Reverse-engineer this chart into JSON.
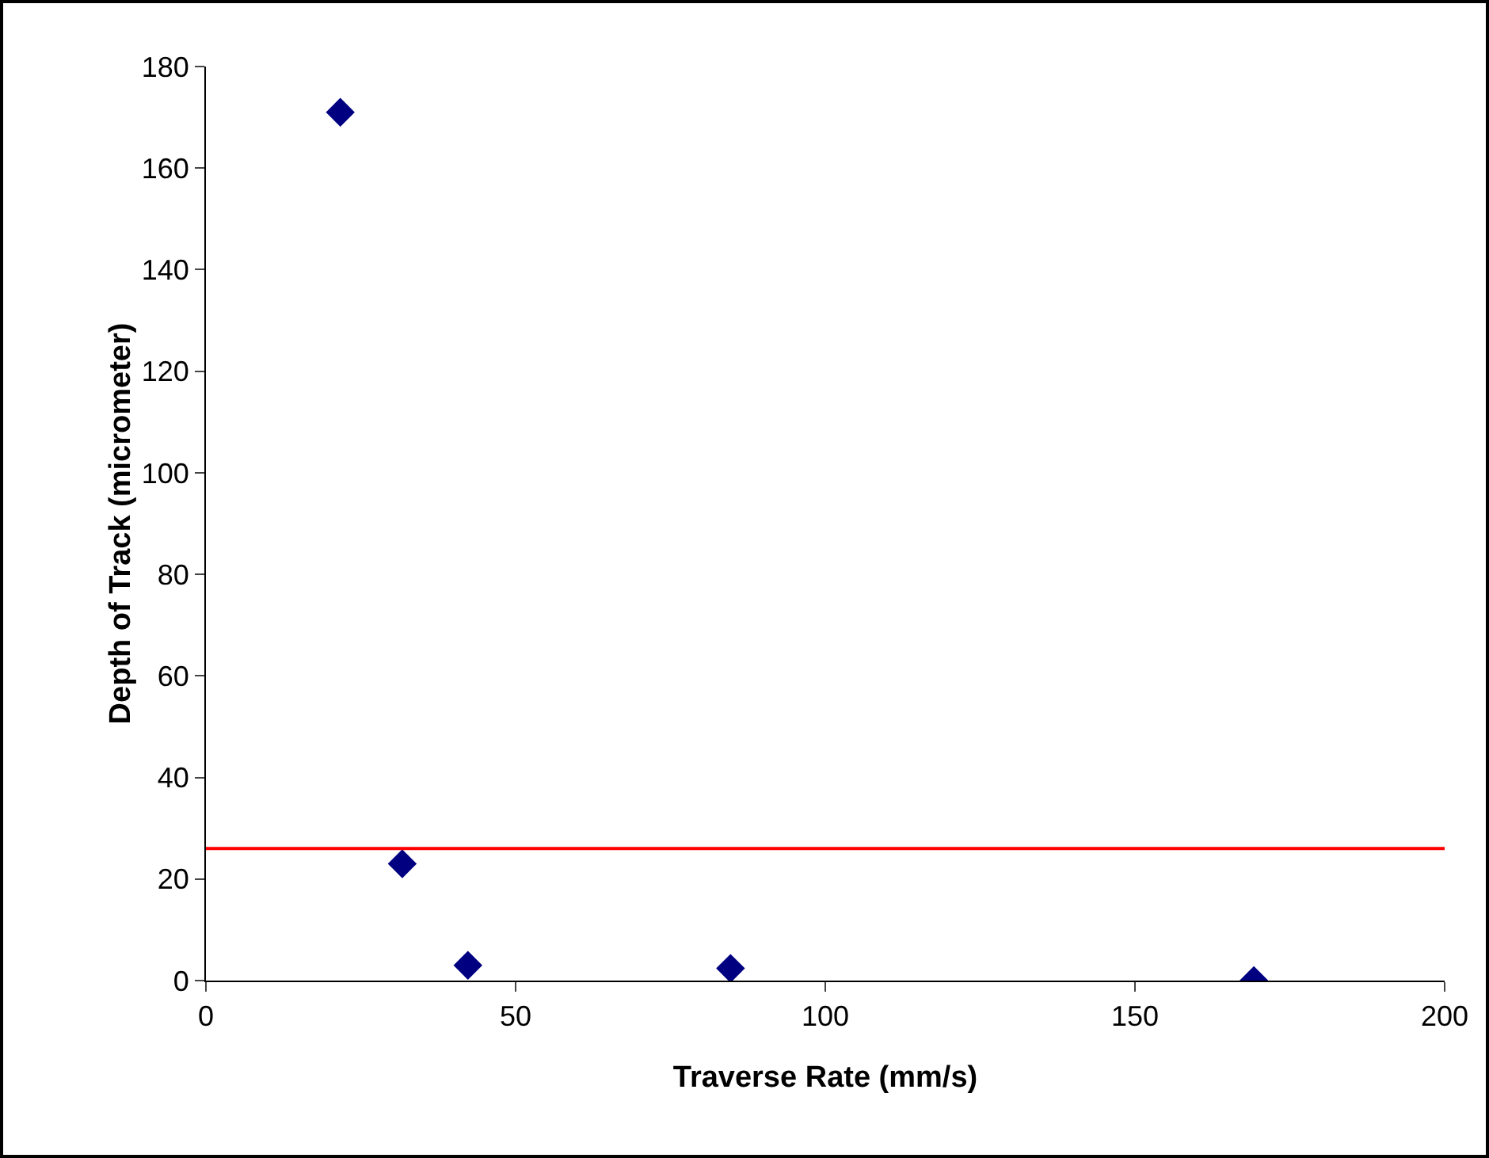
{
  "chart_data": {
    "type": "scatter",
    "xlabel": "Traverse Rate (mm/s)",
    "ylabel": "Depth of Track (micrometer)",
    "x": [
      21.7,
      31.7,
      42.3,
      84.7,
      169.2
    ],
    "values": [
      171,
      23,
      3,
      2.4,
      0
    ],
    "color": "#000080",
    "marker": "diamond",
    "xlim": [
      0,
      200
    ],
    "xticks": [
      0,
      50,
      100,
      150,
      200
    ],
    "ylim": [
      0,
      180
    ],
    "yticks": [
      0,
      20,
      40,
      60,
      80,
      100,
      120,
      140,
      160,
      180
    ],
    "grid": false,
    "ref_lines": [
      {
        "axis": "y",
        "value": 26,
        "color": "#ff0000"
      }
    ]
  }
}
